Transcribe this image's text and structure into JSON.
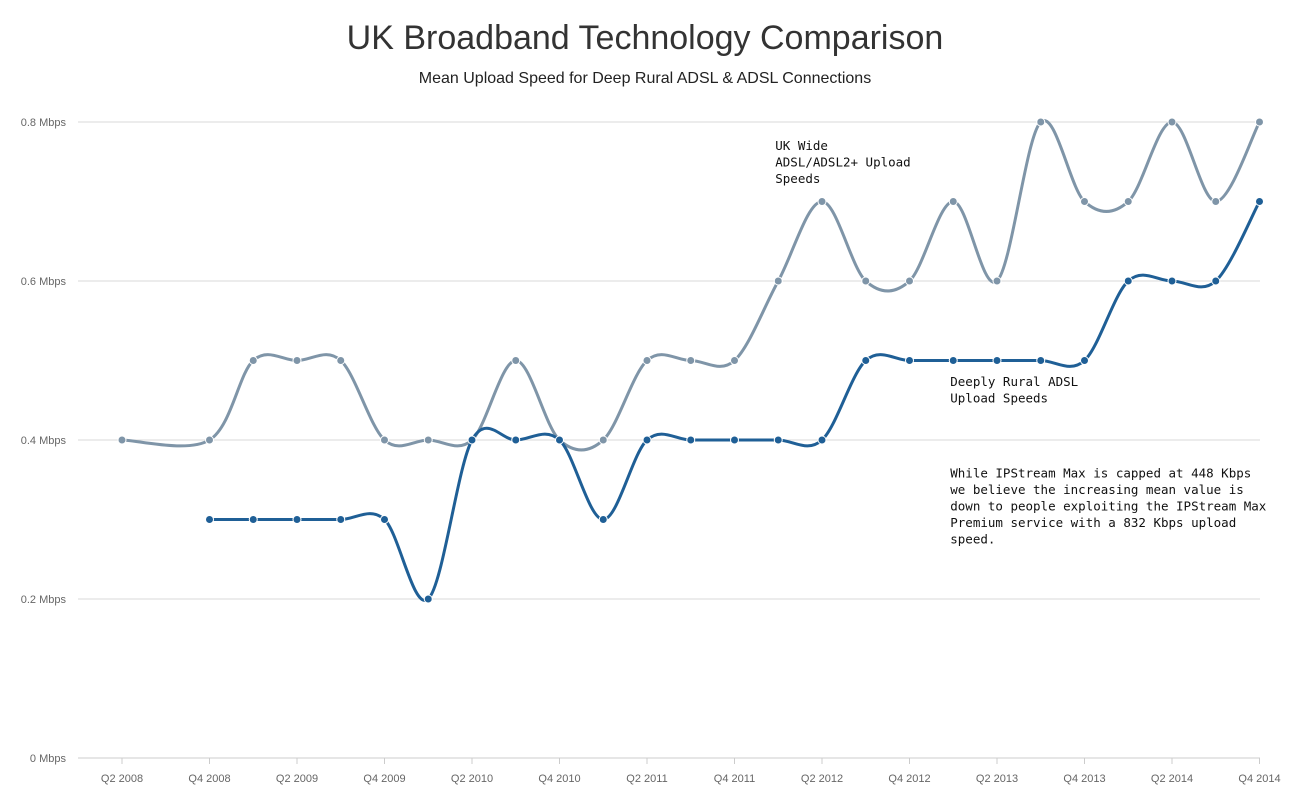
{
  "chart_data": {
    "type": "line",
    "title": "UK Broadband Technology Comparison",
    "subtitle": "Mean Upload Speed for Deep Rural ADSL & ADSL Connections",
    "xlabel": "",
    "ylabel": "",
    "x": [
      "Q2 2008",
      "Q3 2008",
      "Q4 2008",
      "Q1 2009",
      "Q2 2009",
      "Q3 2009",
      "Q4 2009",
      "Q1 2010",
      "Q2 2010",
      "Q3 2010",
      "Q4 2010",
      "Q1 2011",
      "Q2 2011",
      "Q3 2011",
      "Q4 2011",
      "Q1 2012",
      "Q2 2012",
      "Q3 2012",
      "Q4 2012",
      "Q1 2013",
      "Q2 2013",
      "Q3 2013",
      "Q4 2013",
      "Q1 2014",
      "Q2 2014",
      "Q3 2014",
      "Q4 2014"
    ],
    "x_tick_labels": [
      "Q2 2008",
      "Q4 2008",
      "Q2 2009",
      "Q4 2009",
      "Q2 2010",
      "Q4 2010",
      "Q2 2011",
      "Q4 2011",
      "Q2 2012",
      "Q4 2012",
      "Q2 2013",
      "Q4 2013",
      "Q2 2014",
      "Q4 2014"
    ],
    "y_ticks": [
      0,
      0.2,
      0.4,
      0.6,
      0.8
    ],
    "y_tick_labels": [
      "0 Mbps",
      "0.2 Mbps",
      "0.4 Mbps",
      "0.6 Mbps",
      "0.8 Mbps"
    ],
    "ylim": [
      0,
      0.8
    ],
    "grid": true,
    "legend": "none",
    "series": [
      {
        "color": "#7f95a8",
        "values": [
          0.4,
          null,
          0.4,
          0.5,
          0.5,
          0.5,
          0.4,
          0.4,
          0.4,
          0.5,
          0.4,
          0.4,
          0.5,
          0.5,
          0.5,
          0.6,
          0.7,
          0.6,
          0.6,
          0.7,
          0.6,
          0.8,
          0.7,
          0.7,
          0.8,
          0.7,
          0.8
        ]
      },
      {
        "color": "#1f5f96",
        "values": [
          null,
          null,
          0.3,
          0.3,
          0.3,
          0.3,
          0.3,
          0.2,
          0.4,
          0.4,
          0.4,
          0.3,
          0.4,
          0.4,
          0.4,
          0.4,
          0.4,
          0.5,
          0.5,
          0.5,
          0.5,
          0.5,
          0.5,
          0.6,
          0.6,
          0.6,
          0.7
        ]
      }
    ],
    "annotations": [
      {
        "lines": [
          "UK Wide",
          "ADSL/ADSL2+ Upload",
          "Speeds"
        ],
        "anchor_x": "Q1 2012",
        "anchor_y": 0.765
      },
      {
        "lines": [
          "Deeply Rural ADSL",
          "Upload Speeds"
        ],
        "anchor_x": "Q1 2013",
        "anchor_y": 0.468
      },
      {
        "lines": [
          "While IPStream Max is capped at 448 Kbps",
          "we believe the increasing mean value is",
          "down to people exploiting the IPStream Max",
          "Premium service with a 832 Kbps upload",
          "speed."
        ],
        "anchor_x": "Q1 2013",
        "anchor_y": 0.353
      }
    ]
  }
}
